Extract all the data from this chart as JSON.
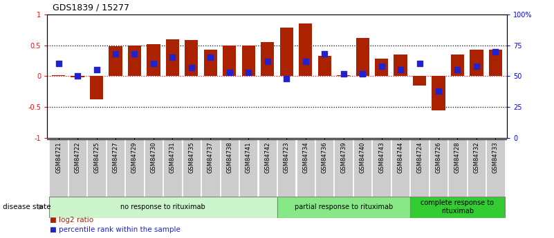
{
  "title": "GDS1839 / 15277",
  "samples": [
    "GSM84721",
    "GSM84722",
    "GSM84725",
    "GSM84727",
    "GSM84729",
    "GSM84730",
    "GSM84731",
    "GSM84735",
    "GSM84737",
    "GSM84738",
    "GSM84741",
    "GSM84742",
    "GSM84723",
    "GSM84734",
    "GSM84736",
    "GSM84739",
    "GSM84740",
    "GSM84743",
    "GSM84744",
    "GSM84724",
    "GSM84726",
    "GSM84728",
    "GSM84732",
    "GSM84733"
  ],
  "log2_ratio": [
    0.02,
    -0.02,
    -0.38,
    0.48,
    0.5,
    0.52,
    0.6,
    0.58,
    0.43,
    0.5,
    0.5,
    0.55,
    0.78,
    0.85,
    0.33,
    0.02,
    0.62,
    0.28,
    0.35,
    -0.15,
    -0.55,
    0.35,
    0.43,
    0.43
  ],
  "percentile_pct": [
    60,
    50,
    55,
    68,
    68,
    60,
    65,
    57,
    65,
    53,
    53,
    62,
    48,
    62,
    68,
    52,
    52,
    58,
    55,
    60,
    38,
    55,
    58,
    70
  ],
  "groups": [
    {
      "label": "no response to rituximab",
      "start": 0,
      "end": 12,
      "color": "#ccf5cc"
    },
    {
      "label": "partial response to rituximab",
      "start": 12,
      "end": 19,
      "color": "#88e888"
    },
    {
      "label": "complete response to\nrituximab",
      "start": 19,
      "end": 24,
      "color": "#33cc33"
    }
  ],
  "bar_color": "#aa2200",
  "dot_color": "#2222cc",
  "label_bg_color": "#cccccc",
  "ylim_left": [
    -1.0,
    1.0
  ],
  "ylabel_left_ticks": [
    -1.0,
    -0.5,
    0.0,
    0.5,
    1.0
  ],
  "ylabel_right_ticks": [
    0,
    25,
    50,
    75,
    100
  ],
  "ylabel_right_labels": [
    "0",
    "25",
    "50",
    "75",
    "100%"
  ],
  "disease_state_label": "disease state"
}
